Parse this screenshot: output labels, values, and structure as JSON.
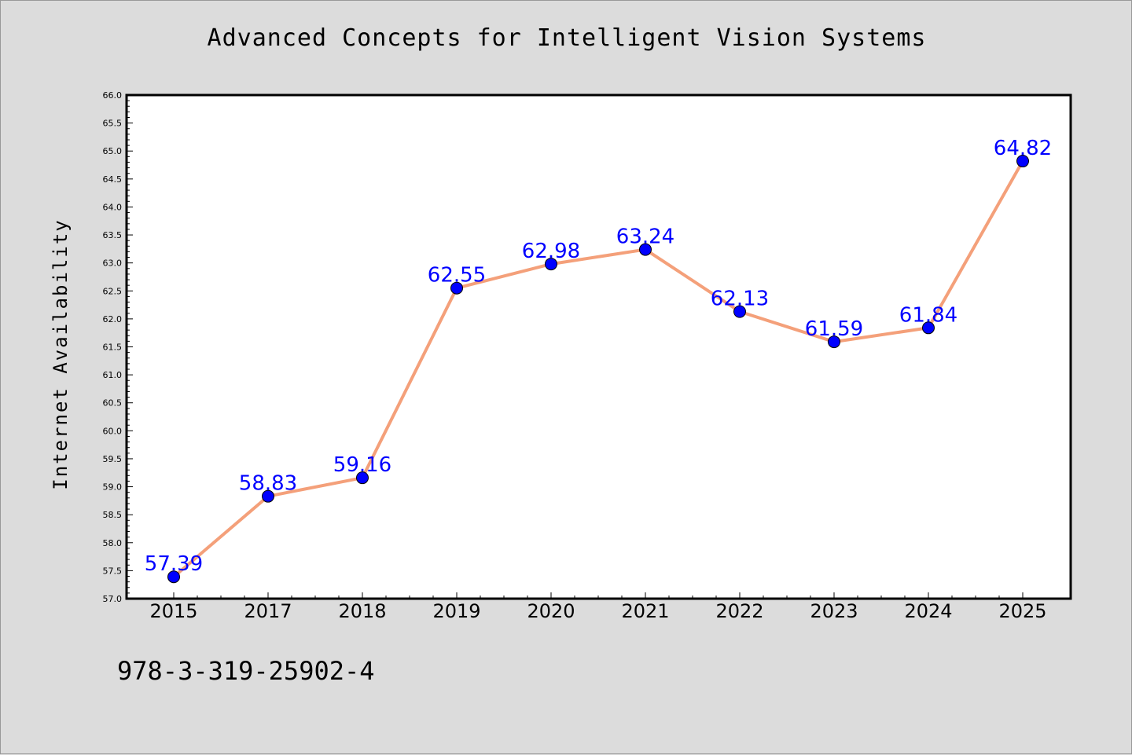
{
  "chart_data": {
    "type": "line",
    "title": "Advanced Concepts for Intelligent Vision Systems",
    "xlabel": "",
    "ylabel": "Internet Availability",
    "categories": [
      "2015",
      "2017",
      "2018",
      "2019",
      "2020",
      "2021",
      "2022",
      "2023",
      "2024",
      "2025"
    ],
    "series": [
      {
        "values": [
          57.39,
          58.83,
          59.16,
          62.55,
          62.98,
          63.24,
          62.13,
          61.59,
          61.84,
          64.82
        ]
      }
    ],
    "data_labels": [
      "57.39",
      "58.83",
      "59.16",
      "62.55",
      "62.98",
      "63.24",
      "62.13",
      "61.59",
      "61.84",
      "64.82"
    ],
    "ylim": [
      57.0,
      66.0
    ],
    "yticks": [
      "57.0",
      "57.5",
      "58.0",
      "58.5",
      "59.0",
      "59.5",
      "60.0",
      "60.5",
      "61.0",
      "61.5",
      "62.0",
      "62.5",
      "63.0",
      "63.5",
      "64.0",
      "64.5",
      "65.0",
      "65.5",
      "66.0"
    ],
    "grid": false,
    "legend": "none",
    "colors": {
      "line": "#f4a07a",
      "marker": "#0000ff",
      "label": "#0000ff",
      "plot_bg": "#ffffff",
      "figure_bg": "#dcdcdc"
    }
  },
  "footer": {
    "code": "978-3-319-25902-4"
  }
}
